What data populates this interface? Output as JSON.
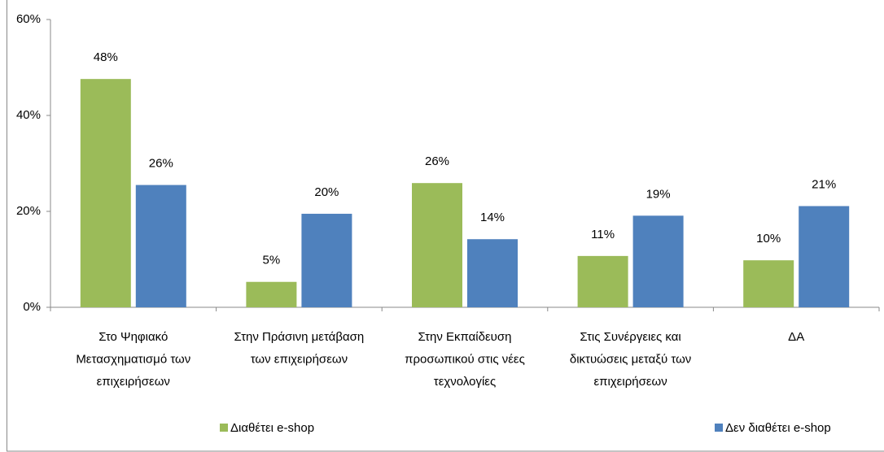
{
  "chart_data": {
    "type": "bar",
    "categories": [
      [
        "Στο Ψηφιακό",
        "Μετασχηματισμό των",
        "επιχειρήσεων"
      ],
      [
        "Στην Πράσινη μετάβαση",
        "των επιχειρήσεων"
      ],
      [
        "Στην Εκπαίδευση",
        "προσωπικού στις νέες",
        "τεχνολογίες"
      ],
      [
        "Στις Συνέργειες και",
        "δικτυώσεις μεταξύ των",
        "επιχειρήσεων"
      ],
      [
        "ΔΑ"
      ]
    ],
    "series": [
      {
        "name": "Διαθέτει e-shop",
        "color": "#9bbb59",
        "values": [
          47.6,
          5.3,
          25.9,
          10.7,
          9.8
        ],
        "value_labels": [
          "48%",
          "5%",
          "26%",
          "11%",
          "10%"
        ]
      },
      {
        "name": "Δεν διαθέτει e-shop",
        "color": "#4f81bd",
        "values": [
          25.5,
          19.5,
          14.2,
          19.1,
          21.1
        ],
        "value_labels": [
          "26%",
          "20%",
          "14%",
          "19%",
          "21%"
        ]
      }
    ],
    "ylim": [
      0,
      60
    ],
    "yticks": [
      {
        "value": 0,
        "label": "0%"
      },
      {
        "value": 20,
        "label": "20%"
      },
      {
        "value": 40,
        "label": "40%"
      },
      {
        "value": 60,
        "label": "60%"
      }
    ],
    "legend": "bottom"
  }
}
